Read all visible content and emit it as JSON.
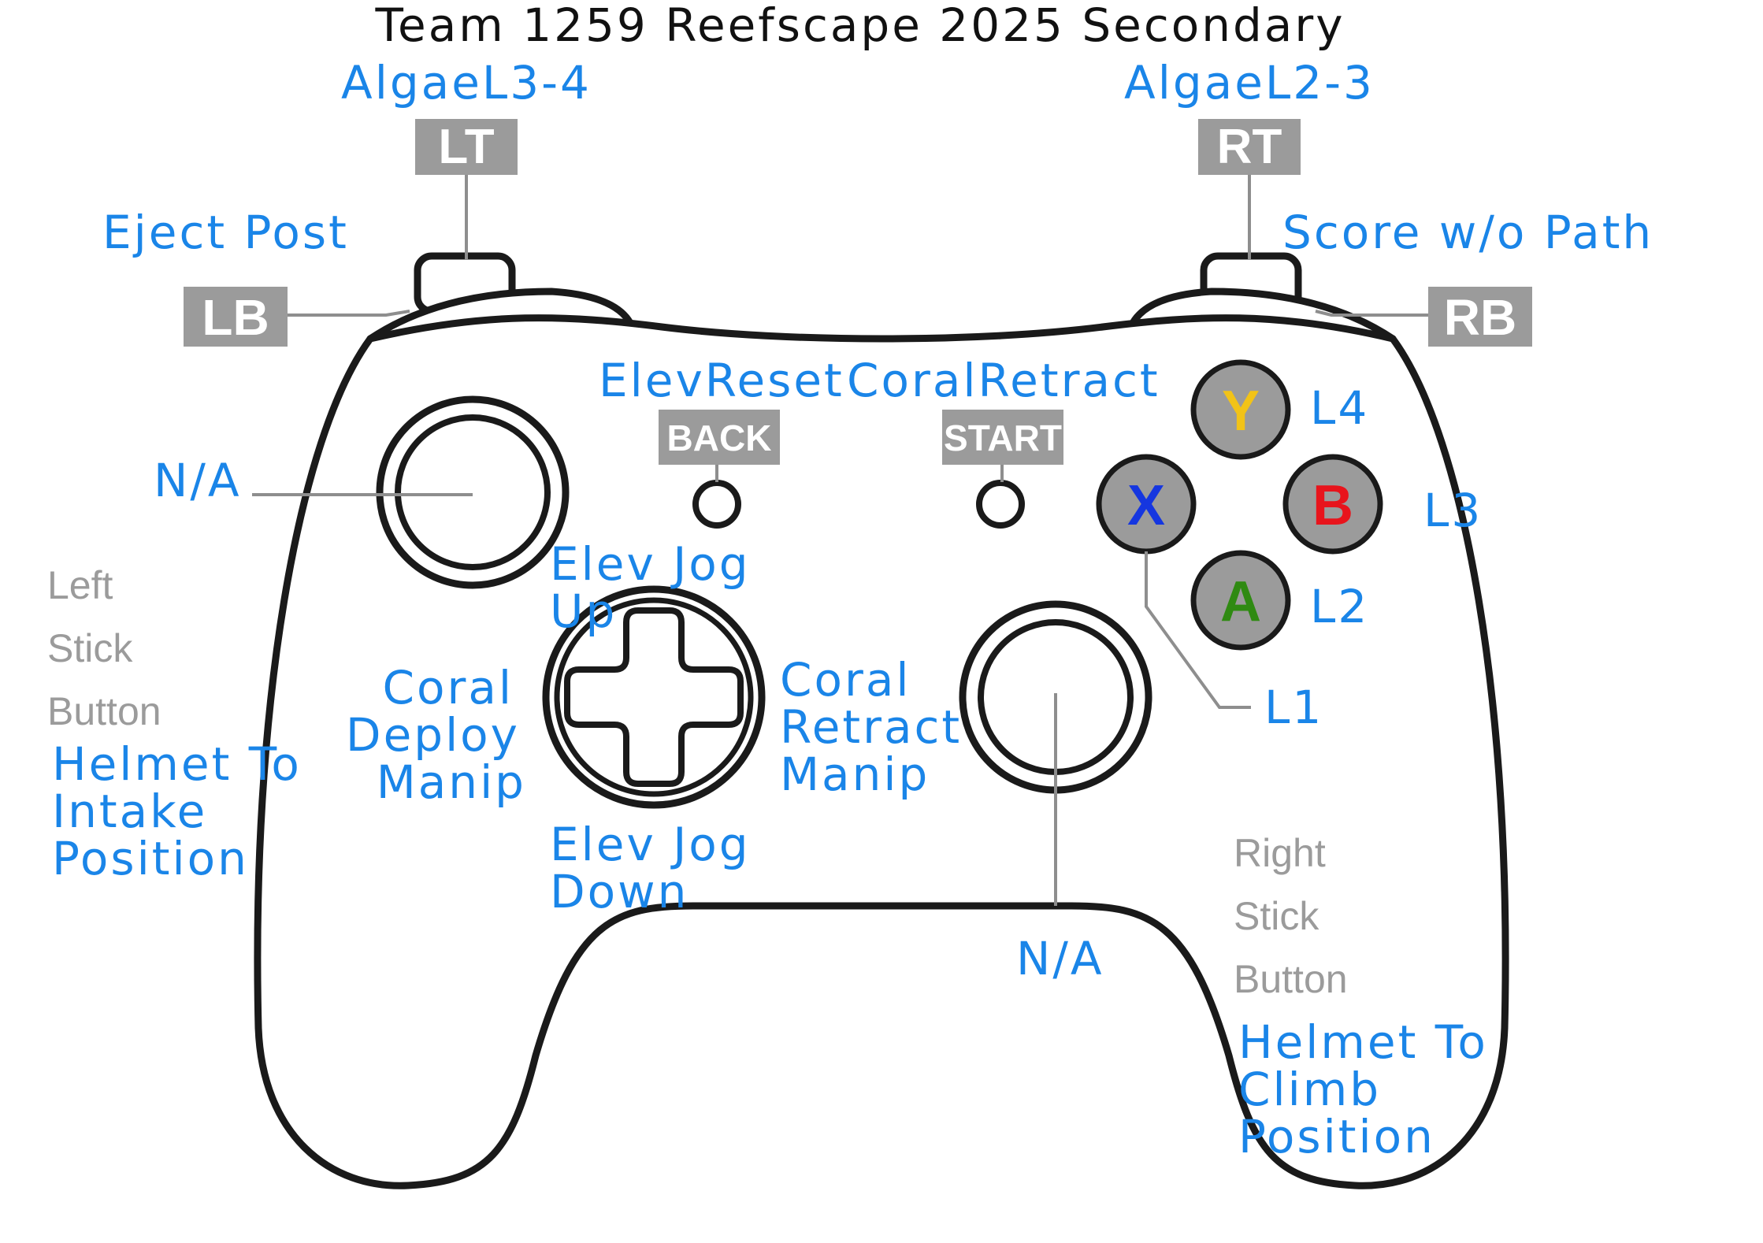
{
  "title": "Team 1259 Reefscape 2025 Secondary",
  "colors": {
    "label_blue": "#1a85e8",
    "box_gray": "#9b9b9b",
    "y_button": "#f2c318",
    "b_button": "#e8141c",
    "x_button": "#1536e0",
    "a_button": "#2f8a12"
  },
  "triggers": {
    "lt": {
      "key": "LT",
      "action": "AlgaeL3-4"
    },
    "rt": {
      "key": "RT",
      "action": "AlgaeL2-3"
    }
  },
  "bumpers": {
    "lb": {
      "key": "LB",
      "action": "Eject Post"
    },
    "rb": {
      "key": "RB",
      "action": "Score w/o Path"
    }
  },
  "center_buttons": {
    "back": {
      "key": "BACK",
      "action": "ElevReset"
    },
    "start": {
      "key": "START",
      "action": "CoralRetract"
    }
  },
  "face_buttons": {
    "y": {
      "key": "Y",
      "action": "L4"
    },
    "b": {
      "key": "B",
      "action": "L3"
    },
    "a": {
      "key": "A",
      "action": "L2"
    },
    "x": {
      "key": "X",
      "action": "L1"
    }
  },
  "left_stick": {
    "action": "N/A",
    "button_label": [
      "Left",
      "Stick",
      "Button"
    ],
    "button_action": [
      "Helmet To",
      "Intake",
      "Position"
    ]
  },
  "right_stick": {
    "action": "N/A",
    "button_label": [
      "Right",
      "Stick",
      "Button"
    ],
    "button_action": [
      "Helmet To",
      "Climb",
      "Position"
    ]
  },
  "dpad": {
    "up": [
      "Elev Jog",
      "Up"
    ],
    "down": [
      "Elev Jog",
      "Down"
    ],
    "left": [
      "Coral",
      "Deploy",
      "Manip"
    ],
    "right": [
      "Coral",
      "Retract",
      "Manip"
    ]
  }
}
